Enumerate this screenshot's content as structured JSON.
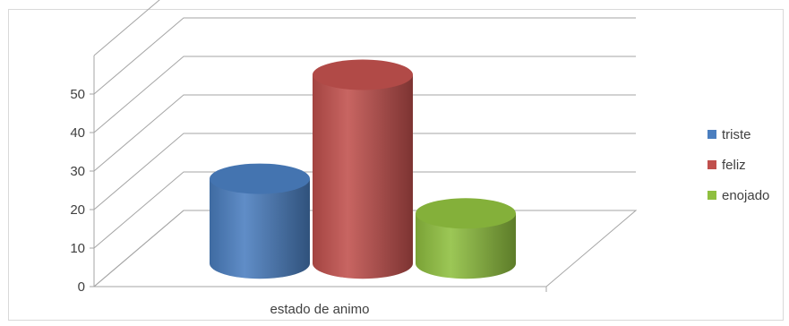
{
  "chart_data": {
    "type": "bar",
    "style": "3d-cylinder",
    "categories": [
      "estado de animo"
    ],
    "series": [
      {
        "name": "triste",
        "values": [
          22
        ],
        "color": "#4a7ebf"
      },
      {
        "name": "feliz",
        "values": [
          49
        ],
        "color": "#c0504d"
      },
      {
        "name": "enojado",
        "values": [
          13
        ],
        "color": "#8fbf3f"
      }
    ],
    "yticks": [
      0,
      10,
      20,
      30,
      40,
      50
    ],
    "ylim": [
      0,
      60
    ],
    "grid": true,
    "legend_position": "right"
  }
}
